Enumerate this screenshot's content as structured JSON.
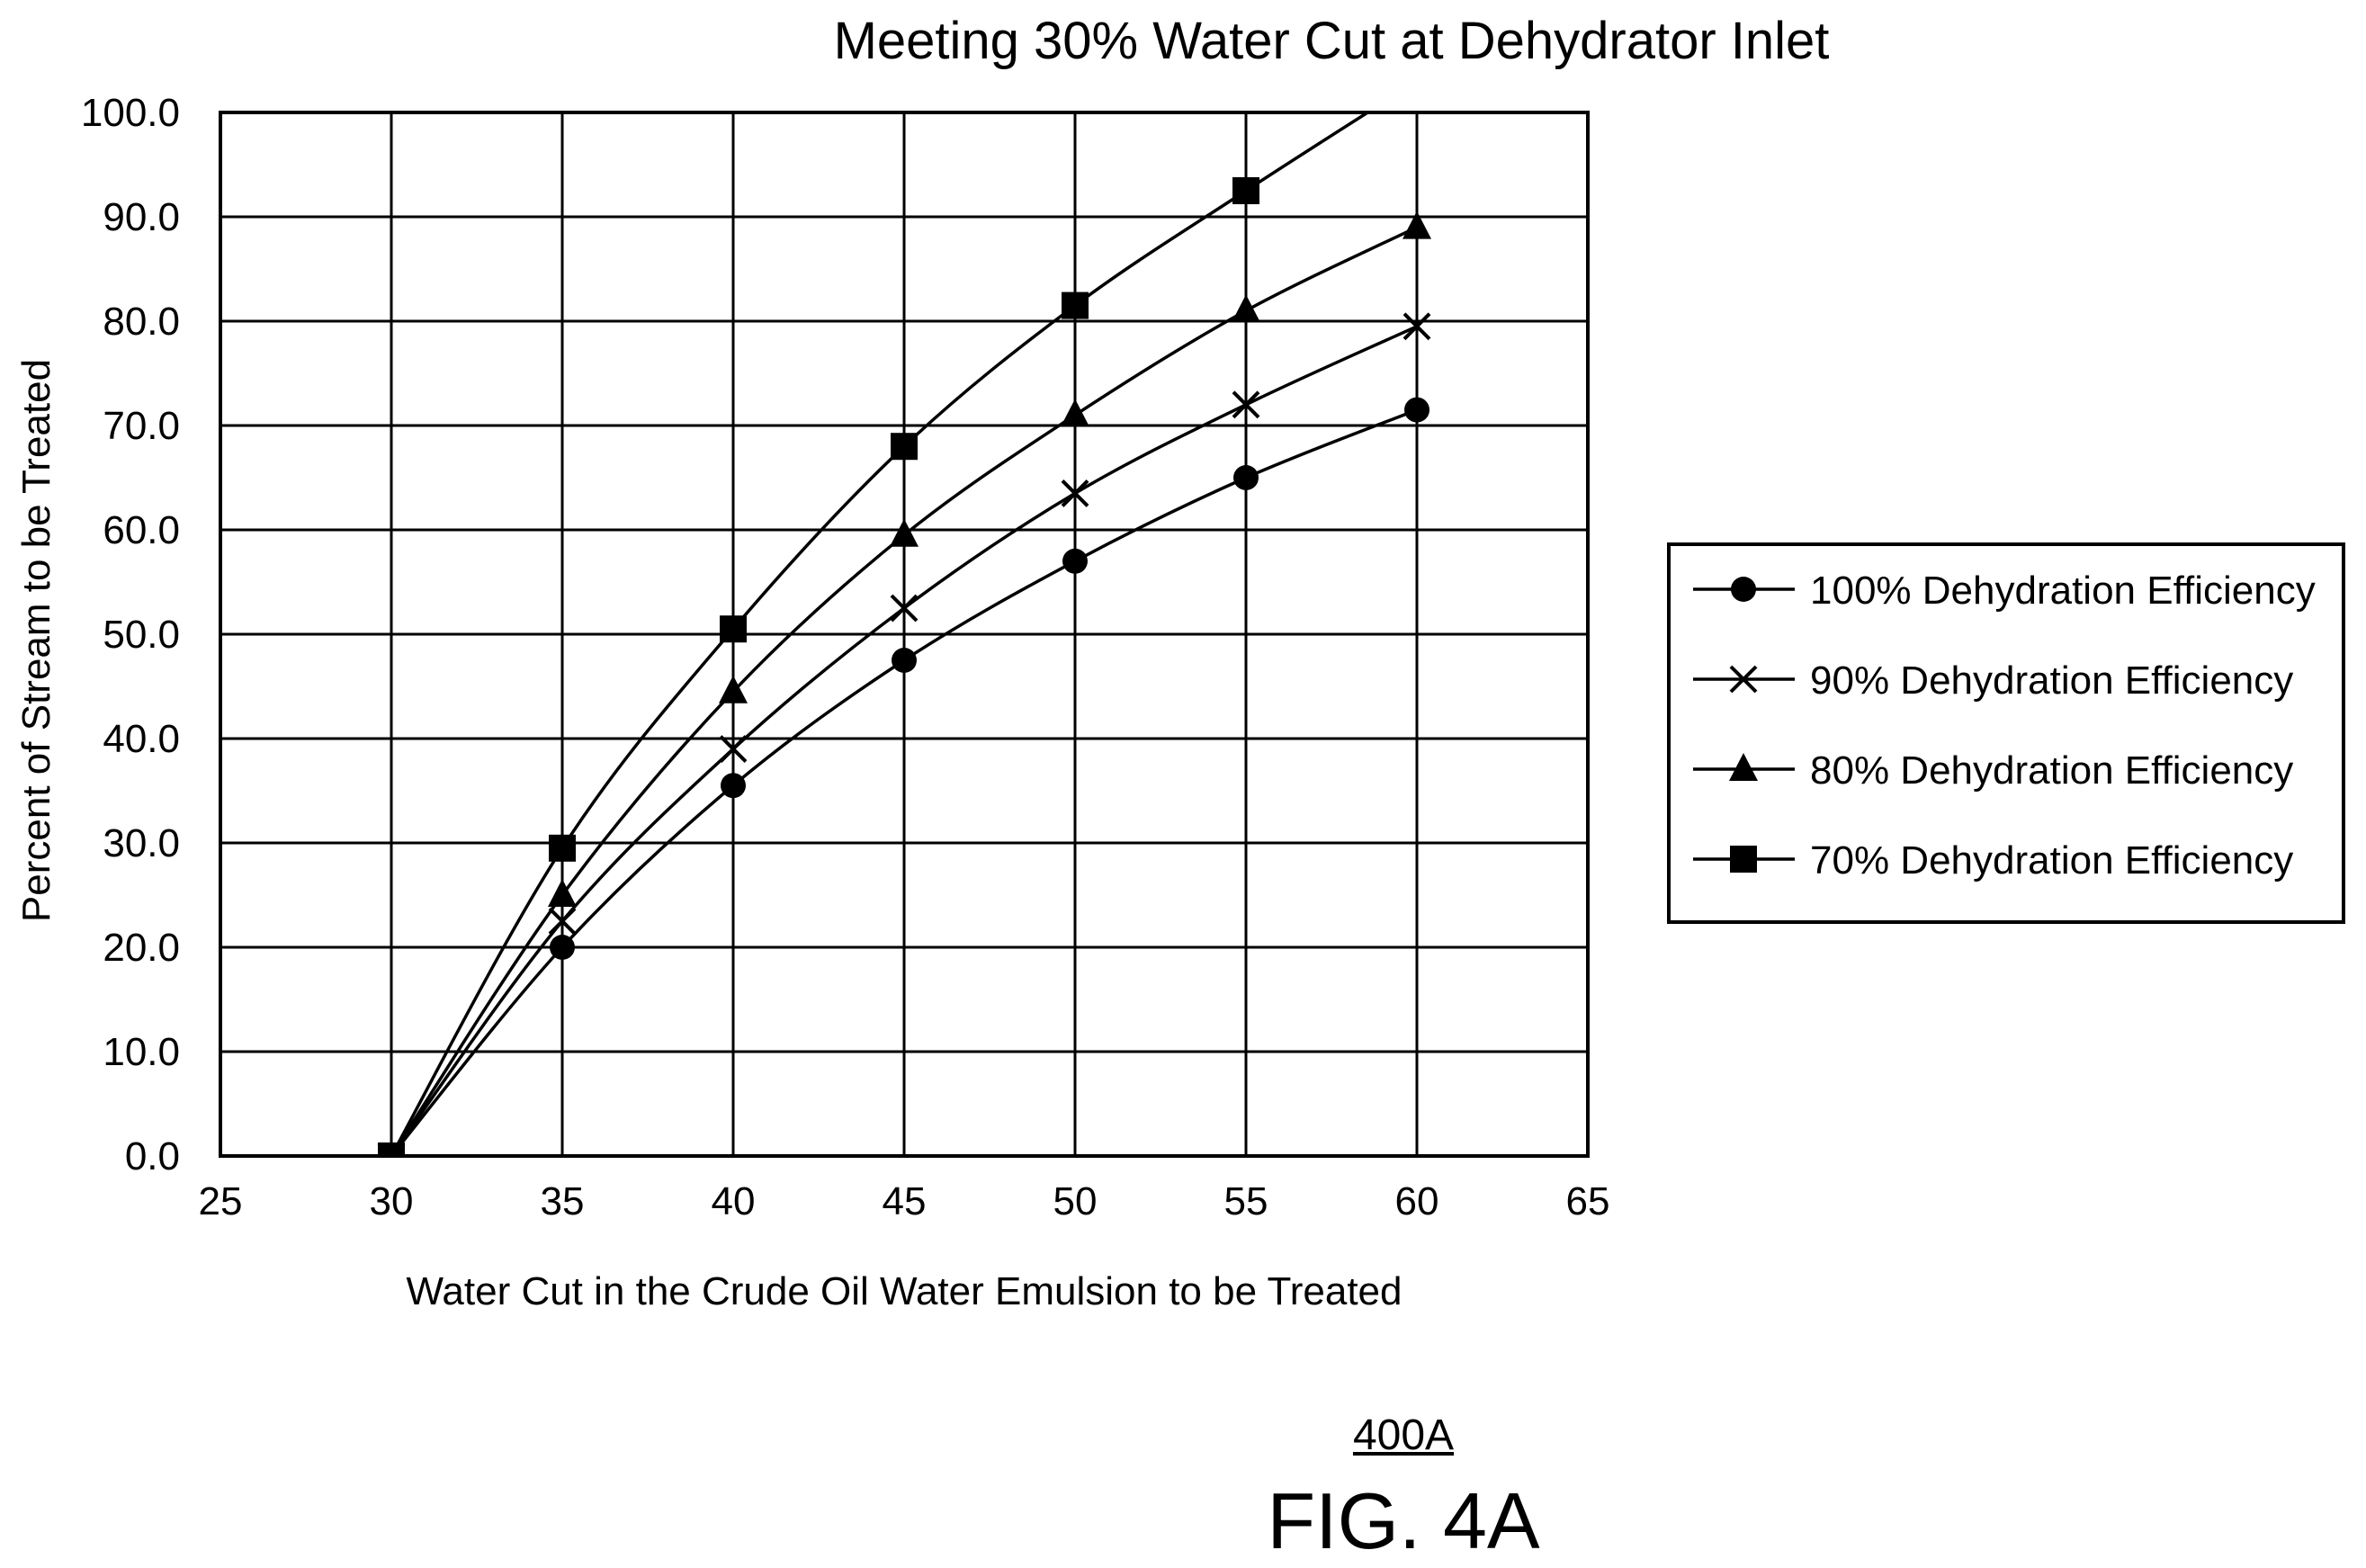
{
  "chart_data": {
    "type": "line",
    "title": "Meeting 30% Water Cut at Dehydrator Inlet",
    "xlabel": "Water Cut in the Crude Oil Water Emulsion to be Treated",
    "ylabel": "Percent of Stream to be Treated",
    "xlim": [
      25,
      65
    ],
    "ylim": [
      0,
      100
    ],
    "xticks": [
      "25",
      "30",
      "35",
      "40",
      "45",
      "50",
      "55",
      "60",
      "65"
    ],
    "yticks": [
      "0.0",
      "10.0",
      "20.0",
      "30.0",
      "40.0",
      "50.0",
      "60.0",
      "70.0",
      "80.0",
      "90.0",
      "100.0"
    ],
    "grid": true,
    "legend_position": "right",
    "x": [
      30,
      35,
      40,
      45,
      50,
      55,
      60
    ],
    "series": [
      {
        "name": "100% Dehydration Efficiency",
        "marker": "circle",
        "values": [
          0,
          20,
          35.5,
          47.5,
          57,
          65,
          71.5
        ]
      },
      {
        "name": "90% Dehydration Efficiency",
        "marker": "x",
        "values": [
          0,
          22.5,
          39,
          52.5,
          63.5,
          72,
          79.5
        ]
      },
      {
        "name": "80% Dehydration Efficiency",
        "marker": "triangle",
        "values": [
          0,
          25,
          44.5,
          59.5,
          71,
          81,
          89
        ]
      },
      {
        "name": "70% Dehydration Efficiency",
        "marker": "square",
        "values": [
          0,
          29.5,
          50.5,
          68,
          81.5,
          92.5,
          103
        ]
      }
    ]
  },
  "figure": {
    "reference": "400A",
    "label": "FIG. 4A"
  }
}
